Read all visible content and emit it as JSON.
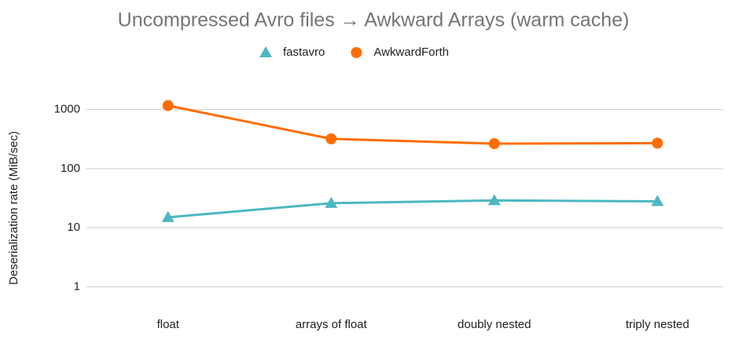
{
  "chart_data": {
    "type": "line",
    "title": "Uncompressed Avro files → Awkward Arrays (warm cache)",
    "y_label": "Deserialization rate (MiB/sec)",
    "categories": [
      "float",
      "arrays of float",
      "doubly nested",
      "triply nested"
    ],
    "series": [
      {
        "name": "fastavro",
        "color": "#4bb8c2",
        "marker": "triangle",
        "values": [
          15,
          26,
          29,
          28
        ]
      },
      {
        "name": "AwkwardForth",
        "color": "#ff6d01",
        "marker": "circle",
        "values": [
          1170,
          320,
          265,
          270
        ]
      }
    ],
    "log_y": true,
    "ylim": [
      0.5,
      2000
    ],
    "yticks": [
      1,
      10,
      100,
      1000
    ],
    "grid": true,
    "legend": "top"
  }
}
